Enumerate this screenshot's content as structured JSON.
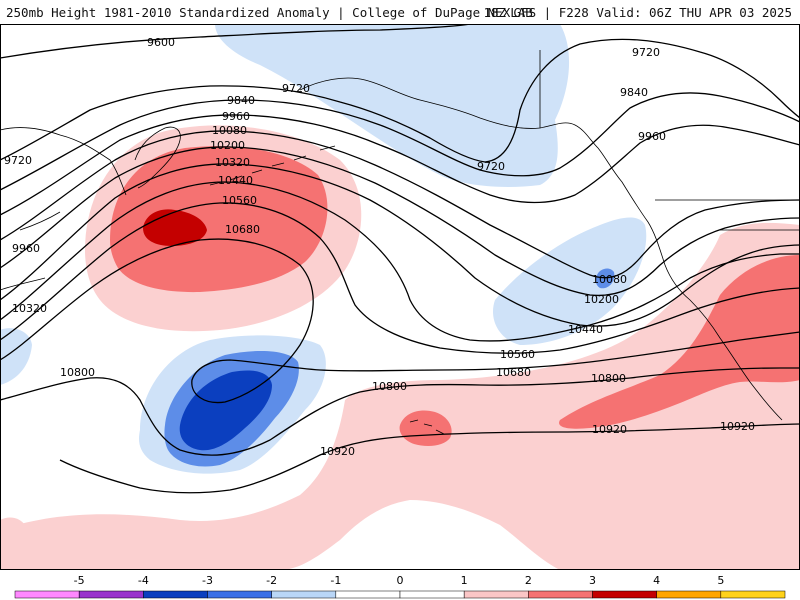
{
  "header": {
    "title": "250mb Height 1981-2010 Standardized Anomaly | College of DuPage NEXLAB",
    "run_info": "18Z GFS | F228 Valid: 06Z THU APR 03 2025"
  },
  "contour_labels": [
    "9600",
    "9720",
    "9720",
    "9720",
    "9720",
    "9840",
    "9840",
    "9960",
    "9960",
    "9960",
    "10080",
    "10080",
    "10200",
    "10200",
    "10320",
    "10320",
    "10440",
    "10440",
    "10560",
    "10560",
    "10680",
    "10680",
    "10800",
    "10800",
    "10800",
    "10920",
    "10920",
    "10920"
  ],
  "colorbar": {
    "ticks": [
      "-5",
      "-4",
      "-3",
      "-2",
      "-1",
      "0",
      "1",
      "2",
      "3",
      "4",
      "5"
    ],
    "colors": [
      "#ff88ff",
      "#9933cc",
      "#0b3fbf",
      "#3a6fe6",
      "#b9d6f7",
      "#ffffff",
      "#ffffff",
      "#fbc6c6",
      "#f57272",
      "#c40000",
      "#ffa500",
      "#ffd21a"
    ]
  },
  "colors": {
    "land": "#ffffff",
    "coast": "#000000",
    "contour": "#000000",
    "neg1": "#cfe2f8",
    "neg2": "#5d8de8",
    "neg3": "#0b3fbf",
    "pos1": "#fbd0d0",
    "pos2": "#f57272",
    "pos3": "#c40000"
  }
}
